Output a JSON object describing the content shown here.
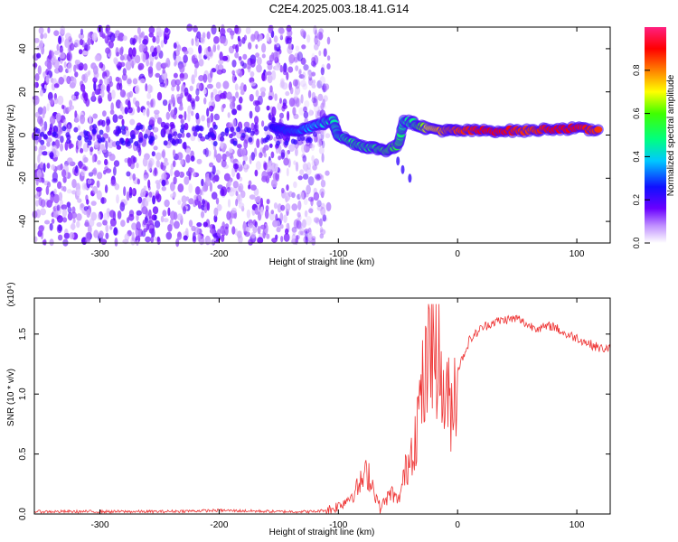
{
  "title": "C2E4.2025.003.18.41.G14",
  "chart_data": [
    {
      "type": "heatmap",
      "title": "C2E4.2025.003.18.41.G14",
      "xlabel": "Height of straight line (km)",
      "ylabel": "Frequency (Hz)",
      "xlim": [
        -355,
        128
      ],
      "ylim": [
        -50,
        50
      ],
      "x_ticks": [
        -300,
        -200,
        -100,
        0,
        100
      ],
      "y_ticks": [
        -40,
        -20,
        0,
        20,
        40
      ],
      "colorbar": {
        "label": "Normalized spectral amplitude",
        "range": [
          0.0,
          1.0
        ],
        "ticks": [
          0.0,
          0.2,
          0.4,
          0.6,
          0.8
        ],
        "tick_labels": [
          "0.0",
          "0.2",
          "0.4",
          "0.6",
          "0.8"
        ]
      },
      "noise_region": {
        "x_range": [
          -355,
          -118
        ],
        "typical_amplitude": 0.15
      },
      "signal_track": [
        {
          "x": -155,
          "freq": 3,
          "amp": 0.25
        },
        {
          "x": -140,
          "freq": 2,
          "amp": 0.3
        },
        {
          "x": -128,
          "freq": 3,
          "amp": 0.35
        },
        {
          "x": -115,
          "freq": 5,
          "amp": 0.4
        },
        {
          "x": -105,
          "freq": 7,
          "amp": 0.45
        },
        {
          "x": -100,
          "freq": 0,
          "amp": 0.45
        },
        {
          "x": -90,
          "freq": -3,
          "amp": 0.5
        },
        {
          "x": -80,
          "freq": -5,
          "amp": 0.5
        },
        {
          "x": -70,
          "freq": -6,
          "amp": 0.5
        },
        {
          "x": -60,
          "freq": -7,
          "amp": 0.55
        },
        {
          "x": -50,
          "freq": -5,
          "amp": 0.55
        },
        {
          "x": -45,
          "freq": 7,
          "amp": 0.45
        },
        {
          "x": -35,
          "freq": 5,
          "amp": 0.5
        },
        {
          "x": -25,
          "freq": 3,
          "amp": 0.7
        },
        {
          "x": -10,
          "freq": 2,
          "amp": 0.8
        },
        {
          "x": 0,
          "freq": 2,
          "amp": 0.85
        },
        {
          "x": 20,
          "freq": 2,
          "amp": 0.9
        },
        {
          "x": 40,
          "freq": 2,
          "amp": 0.9
        },
        {
          "x": 60,
          "freq": 2,
          "amp": 0.85
        },
        {
          "x": 80,
          "freq": 3,
          "amp": 0.9
        },
        {
          "x": 100,
          "freq": 3,
          "amp": 0.9
        },
        {
          "x": 120,
          "freq": 2,
          "amp": 0.85
        }
      ]
    },
    {
      "type": "line",
      "xlabel": "Height of straight line (km)",
      "ylabel": "SNR (10 * v/v)",
      "y_multiplier": "(x10⁴)",
      "xlim": [
        -355,
        128
      ],
      "ylim": [
        0,
        1.8
      ],
      "x_ticks": [
        -300,
        -200,
        -100,
        0,
        100
      ],
      "y_ticks": [
        0.0,
        0.5,
        1.0,
        1.5
      ],
      "color": "#ee3333",
      "series": [
        {
          "x": [
            -355,
            -300,
            -250,
            -200,
            -150,
            -120,
            -105,
            -95,
            -85,
            -75,
            -70,
            -65,
            -60,
            -55,
            -50,
            -45,
            -40,
            -35,
            -30,
            -25,
            -20,
            -15,
            -10,
            -5,
            0,
            10,
            20,
            30,
            40,
            50,
            60,
            70,
            80,
            90,
            100,
            110,
            120,
            128
          ],
          "y": [
            0.02,
            0.02,
            0.02,
            0.03,
            0.02,
            0.02,
            0.04,
            0.1,
            0.2,
            0.35,
            0.2,
            0.05,
            0.12,
            0.18,
            0.1,
            0.3,
            0.5,
            0.7,
            1.0,
            1.2,
            1.4,
            1.1,
            0.95,
            0.9,
            1.2,
            1.45,
            1.55,
            1.6,
            1.62,
            1.63,
            1.57,
            1.55,
            1.57,
            1.5,
            1.47,
            1.42,
            1.38,
            1.38
          ]
        }
      ]
    }
  ]
}
